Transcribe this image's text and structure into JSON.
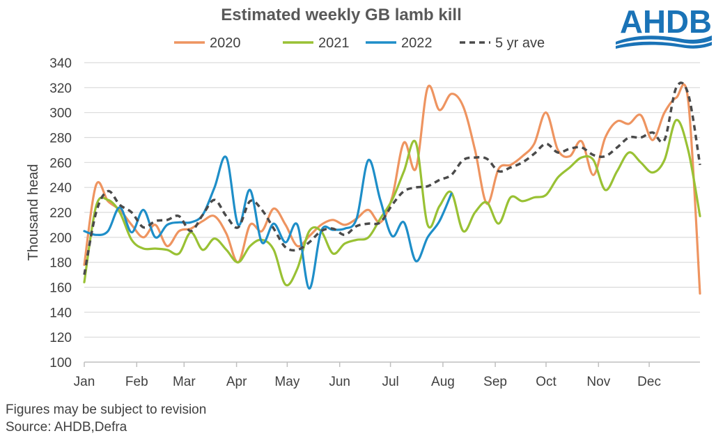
{
  "logo": {
    "text": "AHDB"
  },
  "footnotes": {
    "revision": "Figures may be subject to revision",
    "source": "Source: AHDB,Defra"
  },
  "colors": {
    "2020": "#ee9460",
    "2021": "#99c134",
    "2022": "#1e8ec8",
    "5 yr ave": "#4a4a4a",
    "grid": "#d9d9d9",
    "logo": "#1a73b7"
  },
  "chart_data": {
    "type": "line",
    "title": "Estimated weekly GB lamb kill",
    "xlabel": "",
    "ylabel": "Thousand head",
    "ylim": [
      100,
      340
    ],
    "yticks": [
      100,
      120,
      140,
      160,
      180,
      200,
      220,
      240,
      260,
      280,
      300,
      320,
      340
    ],
    "x_unit": "week of year",
    "xlim": [
      1,
      53
    ],
    "month_labels": [
      "Jan",
      "Feb",
      "Mar",
      "Apr",
      "May",
      "Jun",
      "Jul",
      "Aug",
      "Sep",
      "Oct",
      "Nov",
      "Dec"
    ],
    "month_positions": [
      1,
      5.43,
      9.43,
      13.86,
      18.14,
      22.57,
      26.86,
      31.29,
      35.71,
      40,
      44.43,
      48.71
    ],
    "legend_position": "top",
    "grid": "horizontal",
    "series": [
      {
        "name": "2020",
        "style": "solid",
        "values": [
          178,
          242,
          229,
          222,
          210,
          200,
          210,
          193,
          205,
          207,
          213,
          217,
          203,
          180,
          210,
          205,
          223,
          210,
          193,
          201,
          210,
          214,
          210,
          215,
          222,
          212,
          232,
          276,
          255,
          320,
          302,
          315,
          305,
          270,
          227,
          255,
          258,
          265,
          275,
          300,
          270,
          265,
          277,
          250,
          280,
          293,
          291,
          298,
          278,
          300,
          312,
          310,
          155
        ]
      },
      {
        "name": "2021",
        "style": "solid",
        "values": [
          164,
          225,
          230,
          220,
          198,
          191,
          191,
          190,
          187,
          204,
          190,
          199,
          190,
          180,
          193,
          198,
          190,
          162,
          175,
          205,
          205,
          187,
          195,
          198,
          200,
          215,
          230,
          253,
          276,
          210,
          225,
          236,
          205,
          220,
          228,
          211,
          232,
          229,
          232,
          234,
          248,
          256,
          264,
          262,
          238,
          253,
          268,
          260,
          252,
          262,
          294,
          270,
          217
        ]
      },
      {
        "name": "2022",
        "style": "solid",
        "values": [
          205,
          202,
          205,
          224,
          204,
          222,
          200,
          210,
          212,
          212,
          218,
          240,
          264,
          210,
          238,
          196,
          211,
          196,
          210,
          159,
          205,
          206,
          207,
          215,
          262,
          230,
          201,
          212,
          181,
          200,
          213,
          235
        ]
      },
      {
        "name": "5 yr ave",
        "style": "dashed",
        "values": [
          170,
          220,
          237,
          226,
          220,
          208,
          213,
          214,
          217,
          205,
          218,
          230,
          217,
          208,
          229,
          222,
          207,
          192,
          190,
          196,
          205,
          207,
          202,
          209,
          211,
          212,
          226,
          237,
          240,
          241,
          246,
          250,
          262,
          264,
          263,
          253,
          256,
          260,
          267,
          275,
          268,
          271,
          272,
          266,
          265,
          272,
          280,
          280,
          284,
          278,
          320,
          315,
          258
        ]
      }
    ]
  }
}
